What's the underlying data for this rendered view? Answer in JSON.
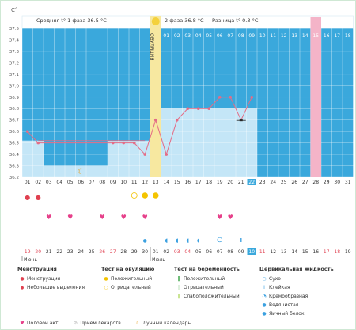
{
  "chart_data": {
    "type": "line",
    "yunit": "C°",
    "ylim": [
      36.2,
      37.5
    ],
    "yticks": [
      "37.5",
      "37.4",
      "37.3",
      "37.2",
      "37.1",
      "37.0",
      "36.9",
      "36.8",
      "36.7",
      "36.6",
      "36.5",
      "36.4",
      "36.3",
      "36.2"
    ],
    "header": {
      "phase1": "Средняя t° 1 фаза 36.5 °С",
      "phase2": "2 фаза 36.8 °С",
      "diff": "Разница t° 0.3 °С"
    },
    "ovulation_label": "ОВУЛЯЦИЯ",
    "ovulation_day": 13,
    "pink_day": 28,
    "highlight_day": 22,
    "phase1_avg": 36.52,
    "phase2_avg": 36.8,
    "cycle_days": [
      "01",
      "02",
      "03",
      "04",
      "05",
      "06",
      "07",
      "08",
      "09",
      "10",
      "11",
      "12",
      "13",
      "14",
      "15",
      "16",
      "17",
      "18",
      "19",
      "20",
      "21",
      "22",
      "23",
      "24",
      "25",
      "26",
      "27",
      "28",
      "29",
      "30",
      "31"
    ],
    "top_day_labels": [
      "01",
      "02",
      "03",
      "04",
      "05",
      "06",
      "07",
      "08",
      "09",
      "10",
      "11",
      "12",
      "13",
      "14",
      "15",
      "16",
      "17",
      "18"
    ],
    "temperatures": [
      {
        "day": 1,
        "t": 36.6
      },
      {
        "day": 2,
        "t": 36.5
      },
      {
        "day": 9,
        "t": 36.5
      },
      {
        "day": 10,
        "t": 36.5
      },
      {
        "day": 11,
        "t": 36.5
      },
      {
        "day": 12,
        "t": 36.4
      },
      {
        "day": 13,
        "t": 36.7
      },
      {
        "day": 14,
        "t": 36.4
      },
      {
        "day": 15,
        "t": 36.7
      },
      {
        "day": 16,
        "t": 36.8
      },
      {
        "day": 17,
        "t": 36.8
      },
      {
        "day": 18,
        "t": 36.8
      },
      {
        "day": 19,
        "t": 36.9
      },
      {
        "day": 20,
        "t": 36.9
      },
      {
        "day": 21,
        "t": 36.7
      },
      {
        "day": 22,
        "t": 36.9
      }
    ],
    "markers": {
      "menstruation": [
        1,
        2
      ],
      "moon": [
        6
      ],
      "ovulation_negative": [
        11
      ],
      "ovulation_positive": [
        12,
        13
      ],
      "intercourse": [
        3,
        5,
        8,
        10,
        12,
        19,
        20
      ],
      "water": [
        12
      ],
      "creamy": [
        14,
        15,
        16,
        17
      ],
      "dry": [
        19
      ],
      "sticky": [
        21
      ]
    },
    "dates": [
      "19",
      "20",
      "21",
      "22",
      "23",
      "24",
      "25",
      "26",
      "27",
      "28",
      "29",
      "30",
      "01",
      "02",
      "03",
      "04",
      "05",
      "06",
      "07",
      "08",
      "09",
      "10",
      "11",
      "12",
      "13",
      "14",
      "15",
      "16",
      "17",
      "18",
      "19"
    ],
    "weekend_days": [
      1,
      2,
      8,
      9,
      15,
      16,
      22,
      23,
      29,
      30
    ],
    "highlight_date": "10",
    "month_labels": [
      {
        "day": 1,
        "label": "Июнь"
      },
      {
        "day": 13,
        "label": "Июль"
      }
    ]
  },
  "legend": {
    "menstr": {
      "title": "Менструация",
      "items": [
        "Менструация",
        "Небольшие выделения"
      ]
    },
    "ovtest": {
      "title": "Тест на овуляцию",
      "items": [
        "Положительный",
        "Отрицательный"
      ]
    },
    "pregtest": {
      "title": "Тест на беременность",
      "items": [
        "Положительный",
        "Отрицательный",
        "Слабоположительный"
      ]
    },
    "cervical": {
      "title": "Цервикальная жидкость",
      "items": [
        "Сухо",
        "Клейкая",
        "Кремообразная",
        "Водянистая",
        "Яичный белок"
      ]
    },
    "bottom": [
      "Половой акт",
      "Прием лекарств",
      "Лунный календарь"
    ]
  },
  "colors": {
    "blue": "#3aa8dc",
    "light": "#c4e6f7",
    "line": "#e46c86",
    "yellow": "#f7e8a0",
    "pink": "#f4b4c8",
    "red": "#e04050",
    "drop": "#3aa0e0",
    "heart": "#e6408a",
    "moon": "#e8a020",
    "green": "#4caf50",
    "gridlight": "#ffffff"
  }
}
